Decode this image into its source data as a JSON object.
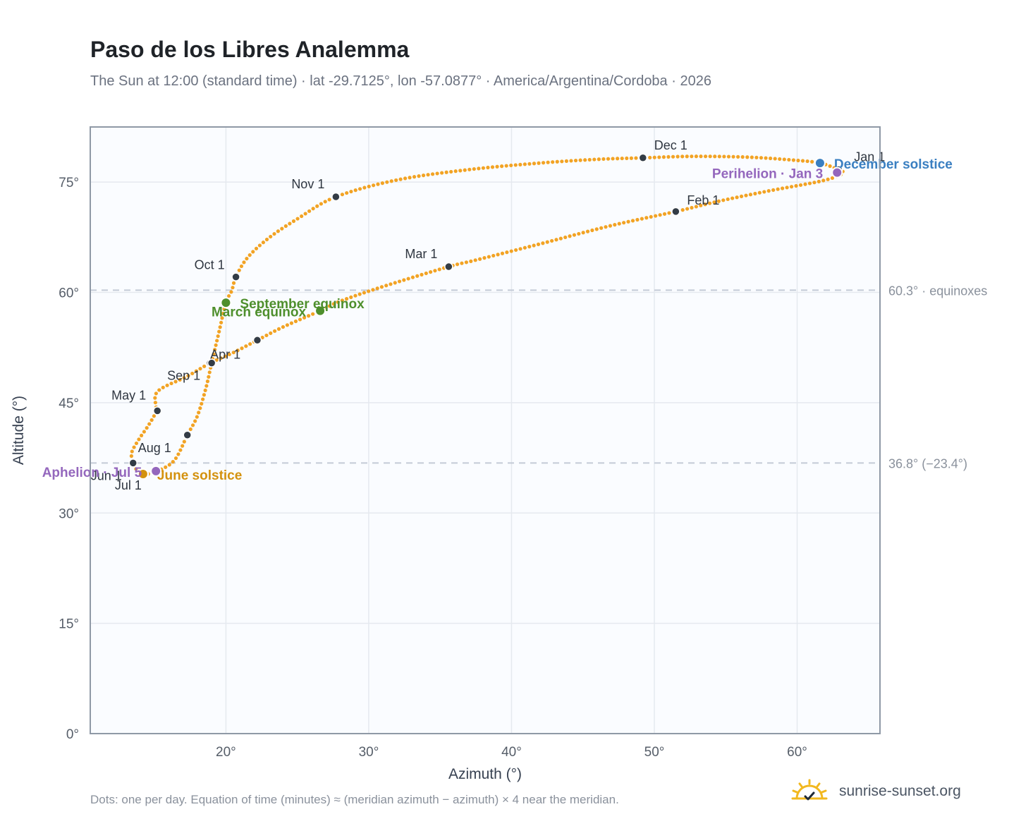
{
  "header": {
    "title": "Paso de los Libres Analemma",
    "subtitle": "The Sun at 12:00 (standard time) · lat -29.7125°, lon -57.0877° · America/Argentina/Cordoba · 2026"
  },
  "footer": {
    "note": "Dots: one per day. Equation of time (minutes) ≈ (meridian azimuth − azimuth) × 4 near the meridian.",
    "brand": "sunrise-sunset.org",
    "brand_icon": "sun-logo-icon"
  },
  "colors": {
    "curve": "#f2a324",
    "month_dot": "#333c46",
    "equinox": "#4e8f2c",
    "june_solstice": "#d4920f",
    "december_solstice": "#3a7fc1",
    "apsis": "#9467bd",
    "grid": "#e5e9ef",
    "reference_line": "#c3cad6",
    "plot_bg": "#fafcff",
    "frame": "#8f99a6"
  },
  "chart_data": {
    "type": "scatter",
    "xlabel": "Azimuth (°)",
    "ylabel": "Altitude (°)",
    "xlim": [
      10.5,
      65.8
    ],
    "ylim": [
      0,
      82.5
    ],
    "x_ticks": [
      20,
      30,
      40,
      50,
      60
    ],
    "y_ticks": [
      0,
      15,
      30,
      45,
      60,
      75
    ],
    "x_tick_labels": [
      "20°",
      "30°",
      "40°",
      "50°",
      "60°"
    ],
    "y_tick_labels": [
      "0°",
      "15°",
      "30°",
      "45°",
      "60°",
      "75°"
    ],
    "grid": true,
    "reference_lines": [
      {
        "y": 60.3,
        "label": "60.3° · equinoxes"
      },
      {
        "y": 36.8,
        "label": "36.8° (−23.4°)"
      }
    ],
    "analemma_path": [
      [
        62.9,
        76.7
      ],
      [
        63.2,
        76.2
      ],
      [
        61.8,
        75.2
      ],
      [
        58.0,
        73.8
      ],
      [
        54.5,
        72.4
      ],
      [
        51.5,
        71.0
      ],
      [
        47.0,
        69.1
      ],
      [
        42.0,
        66.6
      ],
      [
        37.5,
        64.4
      ],
      [
        35.6,
        63.5
      ],
      [
        31.0,
        60.8
      ],
      [
        28.0,
        58.8
      ],
      [
        26.6,
        57.5
      ],
      [
        24.0,
        55.3
      ],
      [
        22.2,
        53.5
      ],
      [
        20.5,
        51.8
      ],
      [
        18.9,
        50.4
      ],
      [
        17.3,
        48.6
      ],
      [
        15.2,
        46.5
      ],
      [
        15.1,
        43.9
      ],
      [
        14.6,
        42.0
      ],
      [
        13.9,
        40.0
      ],
      [
        13.4,
        38.2
      ],
      [
        13.5,
        36.8
      ],
      [
        13.7,
        36.0
      ],
      [
        14.3,
        35.3
      ],
      [
        15.2,
        35.7
      ],
      [
        16.4,
        37.2
      ],
      [
        17.3,
        40.6
      ],
      [
        18.0,
        43.2
      ],
      [
        18.6,
        47.0
      ],
      [
        19.0,
        50.4
      ],
      [
        19.5,
        54.5
      ],
      [
        20.0,
        58.6
      ],
      [
        20.4,
        60.2
      ],
      [
        20.7,
        62.1
      ],
      [
        21.5,
        64.7
      ],
      [
        23.0,
        67.4
      ],
      [
        25.0,
        70.0
      ],
      [
        27.7,
        73.0
      ],
      [
        32.0,
        75.3
      ],
      [
        37.0,
        76.7
      ],
      [
        42.0,
        77.6
      ],
      [
        46.0,
        78.1
      ],
      [
        49.2,
        78.3
      ],
      [
        52.5,
        78.5
      ],
      [
        56.5,
        78.4
      ],
      [
        59.7,
        78.0
      ],
      [
        61.6,
        77.6
      ],
      [
        62.9,
        76.7
      ]
    ],
    "month_points": [
      {
        "label": "Jan 1",
        "x": 62.9,
        "y": 76.7
      },
      {
        "label": "Feb 1",
        "x": 51.5,
        "y": 71.0
      },
      {
        "label": "Mar 1",
        "x": 35.6,
        "y": 63.5
      },
      {
        "label": "",
        "x": 22.2,
        "y": 53.5
      },
      {
        "label": "Apr 1",
        "x": 18.9,
        "y": 50.4
      },
      {
        "label": "",
        "x": 15.2,
        "y": 43.9
      },
      {
        "label": "May 1",
        "x": 15.2,
        "y": 43.9
      },
      {
        "label": "Jun 1",
        "x": 13.5,
        "y": 36.8
      },
      {
        "label": "Jul 1",
        "x": 14.3,
        "y": 35.3
      },
      {
        "label": "Aug 1",
        "x": 17.3,
        "y": 40.6
      },
      {
        "label": "Sep 1",
        "x": 19.0,
        "y": 50.4
      },
      {
        "label": "Oct 1",
        "x": 20.7,
        "y": 62.1
      },
      {
        "label": "Nov 1",
        "x": 27.7,
        "y": 73.0
      },
      {
        "label": "Dec 1",
        "x": 49.2,
        "y": 78.3
      }
    ],
    "events": [
      {
        "name": "March equinox",
        "x": 26.6,
        "y": 57.5
      },
      {
        "name": "June solstice",
        "x": 14.2,
        "y": 35.3
      },
      {
        "name": "September equinox",
        "x": 20.0,
        "y": 58.6
      },
      {
        "name": "December solstice",
        "x": 61.6,
        "y": 77.6
      },
      {
        "name": "Perihelion · Jan 3",
        "x": 62.8,
        "y": 76.3
      },
      {
        "name": "Aphelion · Jul 5",
        "x": 15.1,
        "y": 35.7
      }
    ]
  }
}
